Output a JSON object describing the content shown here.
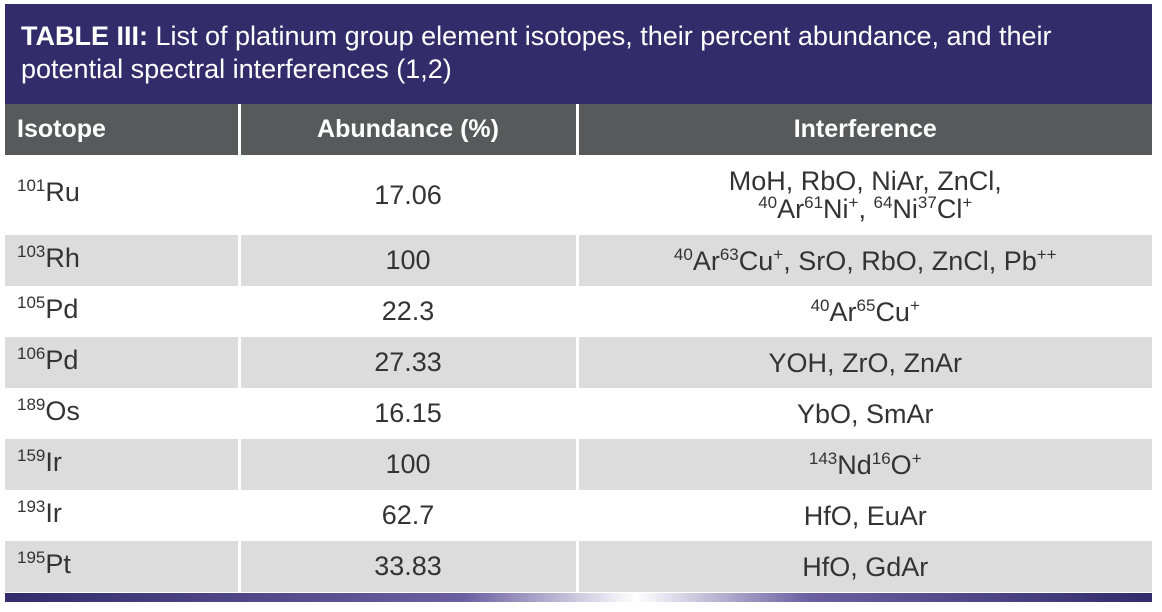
{
  "table": {
    "title_label": "TABLE III:",
    "title_text": " List of platinum group element isotopes, their percent abundance, and their potential spectral interferences (1,2)",
    "headers": {
      "isotope": "Isotope",
      "abundance": "Abundance (%)",
      "interference": "Interference"
    },
    "rows": [
      {
        "mass": "101",
        "element": "Ru",
        "abundance": "17.06",
        "interference": [
          [
            "MoH, RbO, NiAr, ZnCl,"
          ],
          [
            {
              "sup": "40"
            },
            "Ar",
            {
              "sup": "61"
            },
            "Ni",
            {
              "sup": "+"
            },
            ", ",
            {
              "sup": "64"
            },
            "Ni",
            {
              "sup": "37"
            },
            "Cl",
            {
              "sup": "+"
            }
          ]
        ]
      },
      {
        "mass": "103",
        "element": "Rh",
        "abundance": "100",
        "interference": [
          [
            {
              "sup": "40"
            },
            "Ar",
            {
              "sup": "63"
            },
            "Cu",
            {
              "sup": "+"
            },
            ", SrO, RbO, ZnCl, Pb",
            {
              "sup": "++"
            }
          ]
        ]
      },
      {
        "mass": "105",
        "element": "Pd",
        "abundance": "22.3",
        "interference": [
          [
            {
              "sup": "40"
            },
            "Ar",
            {
              "sup": "65"
            },
            "Cu",
            {
              "sup": "+"
            }
          ]
        ]
      },
      {
        "mass": "106",
        "element": "Pd",
        "abundance": "27.33",
        "interference": [
          [
            "YOH, ZrO, ZnAr"
          ]
        ]
      },
      {
        "mass": "189",
        "element": "Os",
        "abundance": "16.15",
        "interference": [
          [
            "YbO, SmAr"
          ]
        ]
      },
      {
        "mass": "159",
        "element": "Ir",
        "abundance": "100",
        "interference": [
          [
            {
              "sup": "143"
            },
            "Nd",
            {
              "sup": "16"
            },
            "O",
            {
              "sup": "+"
            }
          ]
        ]
      },
      {
        "mass": "193",
        "element": "Ir",
        "abundance": "62.7",
        "interference": [
          [
            "HfO, EuAr"
          ]
        ]
      },
      {
        "mass": "195",
        "element": "Pt",
        "abundance": "33.83",
        "interference": [
          [
            "HfO, GdAr"
          ]
        ]
      }
    ]
  }
}
